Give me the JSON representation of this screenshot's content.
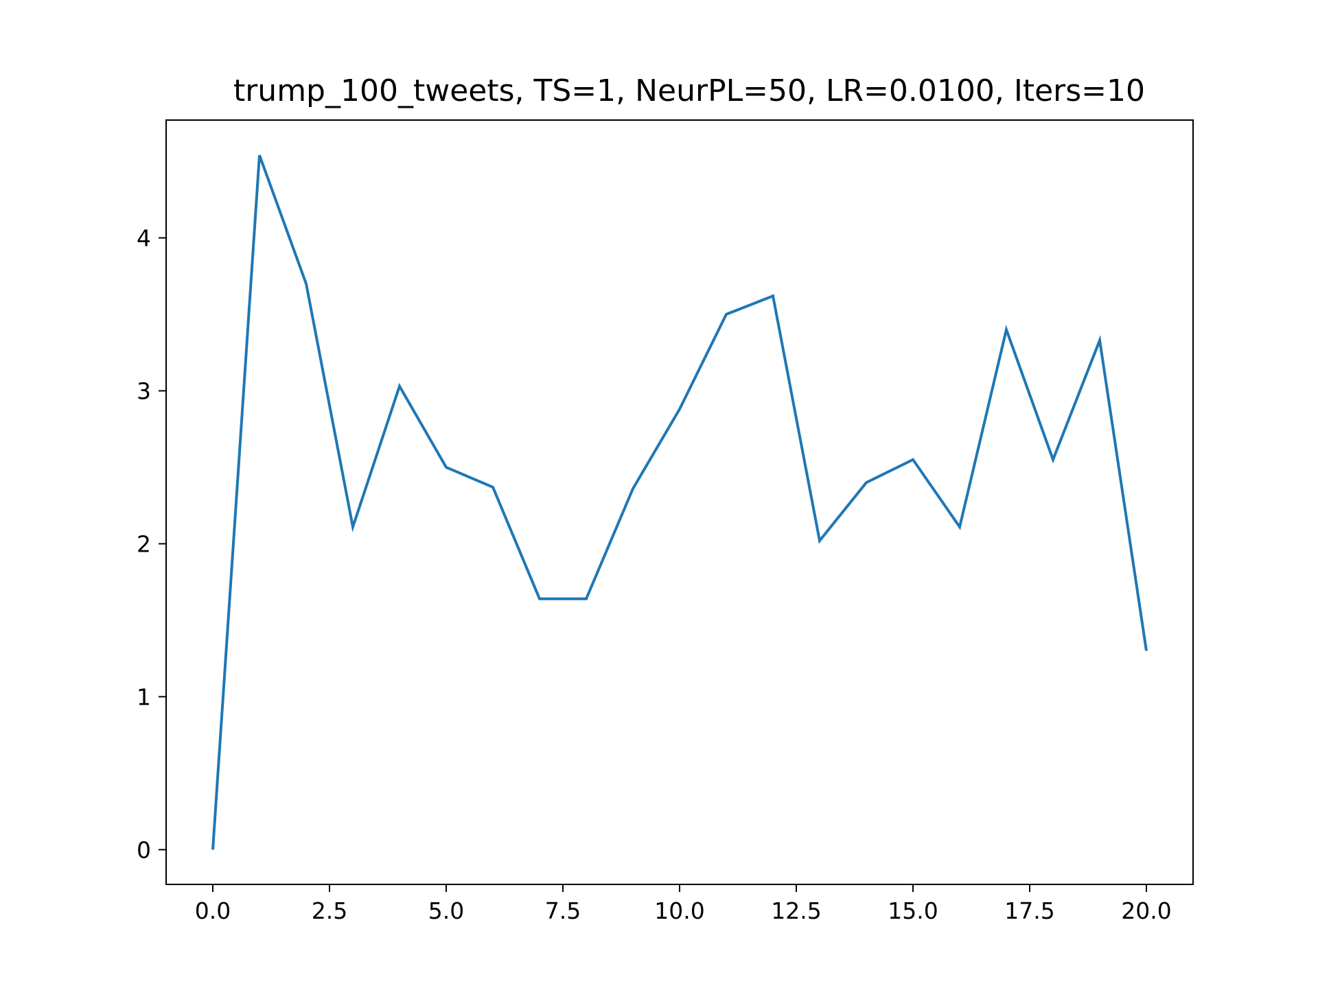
{
  "chart_data": {
    "type": "line",
    "title": "trump_100_tweets, TS=1, NeurPL=50, LR=0.0100, Iters=10",
    "xlabel": "",
    "ylabel": "",
    "xlim": [
      -1.0,
      21.0
    ],
    "ylim": [
      -0.227,
      4.77
    ],
    "x_ticks": [
      0.0,
      2.5,
      5.0,
      7.5,
      10.0,
      12.5,
      15.0,
      17.5,
      20.0
    ],
    "x_tick_labels": [
      "0.0",
      "2.5",
      "5.0",
      "7.5",
      "10.0",
      "12.5",
      "15.0",
      "17.5",
      "20.0"
    ],
    "y_ticks": [
      0,
      1,
      2,
      3,
      4
    ],
    "y_tick_labels": [
      "0",
      "1",
      "2",
      "3",
      "4"
    ],
    "grid": false,
    "series": [
      {
        "color": "#1f77b4",
        "x": [
          0,
          1,
          2,
          3,
          4,
          5,
          6,
          7,
          8,
          9,
          10,
          11,
          12,
          13,
          14,
          15,
          16,
          17,
          18,
          19,
          20
        ],
        "values": [
          0.0,
          4.54,
          3.7,
          2.11,
          3.03,
          2.5,
          2.37,
          1.64,
          1.64,
          2.36,
          2.88,
          3.5,
          3.62,
          2.02,
          2.4,
          2.55,
          2.11,
          3.4,
          2.55,
          3.33,
          1.3
        ]
      }
    ]
  }
}
